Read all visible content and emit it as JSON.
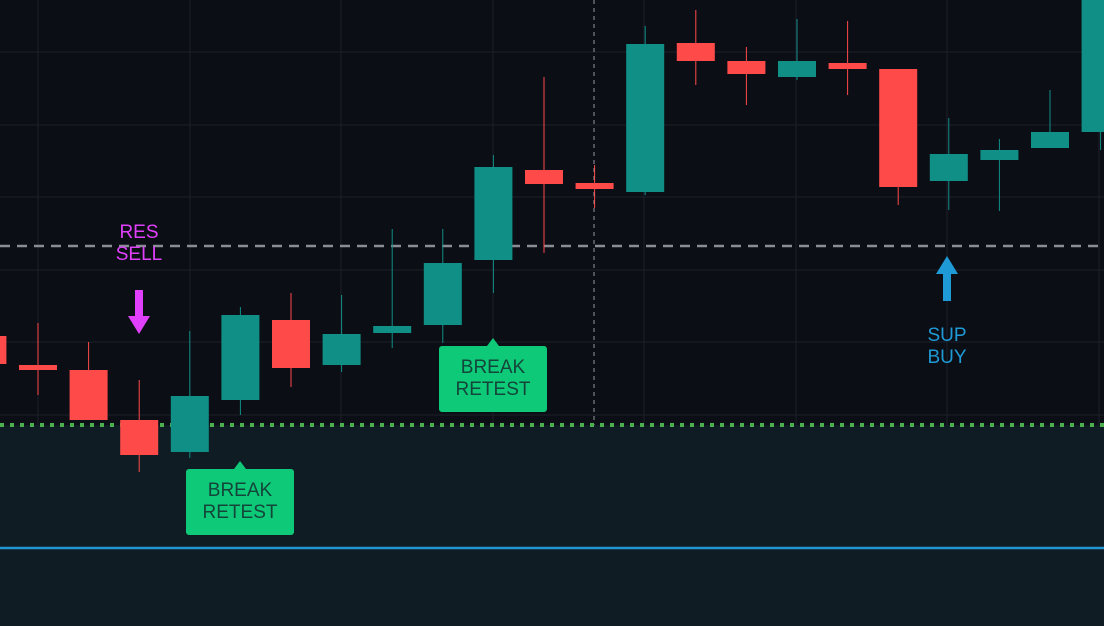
{
  "chart_data": {
    "type": "candlestick",
    "ylim": [
      0,
      626
    ],
    "up_color": "#0f8f86",
    "down_color": "#ff4a4a",
    "open": [
      290,
      261,
      256,
      206,
      174,
      226,
      306,
      261,
      293,
      301,
      366,
      456,
      443,
      434,
      583,
      565,
      549,
      563,
      557,
      445,
      466,
      478,
      494
    ],
    "high": [
      290,
      303,
      284,
      246,
      295,
      319,
      333,
      331,
      397,
      397,
      471,
      549,
      461,
      600,
      616,
      579,
      607,
      605,
      557,
      508,
      487,
      536,
      626
    ],
    "low": [
      262,
      231,
      206,
      154,
      168,
      211,
      239,
      254,
      278,
      283,
      333,
      373,
      418,
      431,
      541,
      521,
      546,
      531,
      421,
      416,
      415,
      478,
      476
    ],
    "close": [
      262,
      256,
      206,
      171,
      230,
      311,
      258,
      292,
      300,
      363,
      459,
      442,
      437,
      582,
      565,
      552,
      565,
      557,
      439,
      472,
      476,
      494,
      626
    ],
    "levels": [
      {
        "value": 380,
        "color": "#8a8d96",
        "style": "dashed"
      },
      {
        "value": 201,
        "color": "#4caf50",
        "style": "dotted"
      },
      {
        "value": 78,
        "color": "#2196d3",
        "style": "solid"
      }
    ],
    "annotations": [
      {
        "lines": [
          "RES",
          "SELL"
        ],
        "color": "#e040fb"
      },
      {
        "lines": [
          "SUP",
          "BUY"
        ],
        "color": "#1e9ad6"
      },
      {
        "lines": [
          "BREAK",
          "RETEST"
        ],
        "color": "#0ec978"
      },
      {
        "lines": [
          "BREAK",
          "RETEST"
        ],
        "color": "#0ec978"
      }
    ]
  }
}
